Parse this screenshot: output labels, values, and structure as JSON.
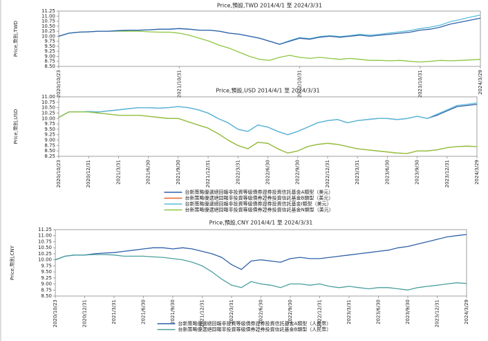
{
  "chart_data": [
    {
      "type": "line",
      "title": "Price,預設,TWD 2014/4/1 至 2024/3/31",
      "y_label": "Price,幣別,TWD",
      "categories": [
        "2020/10/23",
        null,
        null,
        null,
        null,
        null,
        null,
        null,
        null,
        null,
        null,
        null,
        "2021/10/31",
        null,
        null,
        null,
        null,
        null,
        null,
        null,
        null,
        null,
        null,
        null,
        "2022/10/31",
        null,
        null,
        null,
        null,
        null,
        null,
        null,
        null,
        null,
        null,
        null,
        "2023/10/31",
        null,
        null,
        null,
        null,
        null,
        "2024/3/29"
      ],
      "ylim": [
        8.5,
        11.25
      ],
      "yticks": [
        {
          "value": 8.5,
          "label": "8.50"
        },
        8.75,
        {
          "value": 9,
          "label": "9.00"
        },
        9.25,
        {
          "value": 9.5,
          "label": "9.50"
        },
        9.75,
        {
          "value": 10,
          "label": "10.00"
        },
        10.25,
        {
          "value": 10.5,
          "label": "10.50"
        },
        10.75,
        {
          "value": 11,
          "label": "11.00"
        },
        11.25
      ],
      "series": [
        {
          "color": "#8cc63f",
          "values": [
            10.0,
            10.15,
            10.2,
            10.22,
            10.25,
            10.25,
            10.25,
            10.25,
            10.25,
            10.22,
            10.2,
            10.2,
            10.15,
            10.05,
            9.9,
            9.75,
            9.55,
            9.4,
            9.2,
            9.0,
            8.85,
            8.8,
            8.95,
            9.05,
            8.95,
            8.9,
            8.95,
            8.9,
            8.85,
            8.9,
            8.85,
            8.8,
            8.8,
            8.78,
            8.8,
            8.75,
            8.72,
            8.75,
            8.8,
            8.78,
            8.8,
            8.82,
            8.85
          ]
        },
        {
          "color": "#5bbbd8",
          "values": [
            10.0,
            10.15,
            10.2,
            10.22,
            10.25,
            10.25,
            10.28,
            10.3,
            10.3,
            10.32,
            10.35,
            10.35,
            10.38,
            10.35,
            10.3,
            10.3,
            10.25,
            10.15,
            10.1,
            10.0,
            9.9,
            9.75,
            9.6,
            9.78,
            9.93,
            9.88,
            9.98,
            10.03,
            9.98,
            10.03,
            10.1,
            10.05,
            10.1,
            10.16,
            10.22,
            10.28,
            10.38,
            10.45,
            10.55,
            10.72,
            10.83,
            10.95,
            11.05
          ]
        },
        {
          "color": "#2e5fa8",
          "values": [
            10.0,
            10.15,
            10.2,
            10.22,
            10.25,
            10.25,
            10.28,
            10.3,
            10.3,
            10.32,
            10.35,
            10.35,
            10.38,
            10.35,
            10.3,
            10.3,
            10.25,
            10.15,
            10.1,
            10.0,
            9.9,
            9.75,
            9.6,
            9.75,
            9.9,
            9.85,
            9.95,
            10.0,
            9.95,
            10.0,
            10.05,
            10.0,
            10.05,
            10.1,
            10.15,
            10.2,
            10.3,
            10.35,
            10.45,
            10.6,
            10.7,
            10.8,
            10.9
          ]
        }
      ]
    },
    {
      "type": "line",
      "title": "Price,預設,USD 2014/4/1 至 2024/3/31",
      "y_label": "Price,幣別,USD",
      "categories": [
        "2020/10/23",
        null,
        null,
        "2020/12/31",
        null,
        null,
        "2021/3/31",
        null,
        null,
        "2021/6/30",
        null,
        null,
        "2021/9/30",
        null,
        null,
        "2021/12/31",
        null,
        null,
        "2022/3/31",
        null,
        null,
        "2022/6/30",
        null,
        null,
        "2022/9/30",
        null,
        null,
        "2022/12/31",
        null,
        null,
        "2023/3/31",
        null,
        null,
        "2023/6/30",
        null,
        null,
        "2023/9/30",
        null,
        null,
        "2023/12/31",
        null,
        null,
        "2024/3/29"
      ],
      "ylim": [
        8.25,
        11.0
      ],
      "yticks": [
        8.25,
        {
          "value": 8.5,
          "label": "8.50"
        },
        8.75,
        {
          "value": 9,
          "label": "9.00"
        },
        9.25,
        {
          "value": 9.5,
          "label": "9.50"
        },
        9.75,
        {
          "value": 10,
          "label": "10.00"
        },
        10.25,
        {
          "value": 10.5,
          "label": "10.50"
        },
        10.75,
        {
          "value": 11,
          "label": "11.00"
        }
      ],
      "legend": "bottom",
      "series": [
        {
          "name": "台新策略優選絕回報非投資等級債券證券投資信託基金A類型（美元）",
          "color": "#2e5fa8",
          "values": [
            10.05,
            10.3,
            10.3,
            10.32,
            10.3,
            10.35,
            10.4,
            10.45,
            10.5,
            10.5,
            10.48,
            10.5,
            10.55,
            10.5,
            10.4,
            10.25,
            10.0,
            9.8,
            9.5,
            9.4,
            9.7,
            9.6,
            9.4,
            9.25,
            9.4,
            9.6,
            9.8,
            9.9,
            9.95,
            9.8,
            9.9,
            9.95,
            10.0,
            10.0,
            9.95,
            10.0,
            10.1,
            10.0,
            10.15,
            10.35,
            10.55,
            10.6,
            10.65
          ]
        },
        {
          "name": "台新策略優選絕回報非投資等級債券證券投資信託基金B類型（美元）",
          "color": "#e2632a",
          "values": [
            10.05,
            10.3,
            10.3,
            10.3,
            10.25,
            10.2,
            10.15,
            10.15,
            10.15,
            10.1,
            10.05,
            10.0,
            10.0,
            9.85,
            9.7,
            9.55,
            9.3,
            9.0,
            8.75,
            8.6,
            8.9,
            8.85,
            8.6,
            8.4,
            8.5,
            8.7,
            8.8,
            8.85,
            8.8,
            8.7,
            8.6,
            8.55,
            8.5,
            8.45,
            8.4,
            8.38,
            8.5,
            8.5,
            8.55,
            8.65,
            8.7,
            8.72,
            8.7
          ]
        },
        {
          "name": "台新策略優選絕回報非投資等級債券證券投資信託基金I類型（美元）",
          "color": "#5bbbd8",
          "values": [
            10.05,
            10.3,
            10.3,
            10.32,
            10.3,
            10.35,
            10.4,
            10.45,
            10.5,
            10.5,
            10.48,
            10.5,
            10.55,
            10.5,
            10.4,
            10.25,
            10.0,
            9.8,
            9.5,
            9.4,
            9.7,
            9.6,
            9.4,
            9.25,
            9.4,
            9.6,
            9.8,
            9.9,
            9.95,
            9.8,
            9.9,
            9.95,
            10.0,
            10.0,
            9.95,
            10.0,
            10.1,
            10.0,
            10.2,
            10.4,
            10.6,
            10.65,
            10.72
          ]
        },
        {
          "name": "台新策略優選絕回報非投資等級債券證券投資信託基金N類型（美元）",
          "color": "#8cc63f",
          "values": [
            10.05,
            10.3,
            10.3,
            10.3,
            10.25,
            10.2,
            10.15,
            10.15,
            10.15,
            10.1,
            10.05,
            10.0,
            10.0,
            9.85,
            9.7,
            9.55,
            9.3,
            9.0,
            8.75,
            8.6,
            8.9,
            8.85,
            8.6,
            8.4,
            8.5,
            8.7,
            8.8,
            8.85,
            8.8,
            8.7,
            8.6,
            8.55,
            8.5,
            8.45,
            8.4,
            8.38,
            8.5,
            8.5,
            8.55,
            8.65,
            8.7,
            8.72,
            8.7
          ]
        }
      ]
    },
    {
      "type": "line",
      "title": "Price,預設,CNY 2014/4/1 至 2024/3/31",
      "y_label": "Price,幣別,CNY",
      "categories": [
        "2020/10/23",
        null,
        null,
        "2020/12/31",
        null,
        null,
        "2021/3/31",
        null,
        null,
        "2021/6/30",
        null,
        null,
        "2021/9/30",
        null,
        null,
        "2021/12/31",
        null,
        null,
        "2022/3/31",
        null,
        null,
        "2022/6/30",
        null,
        null,
        "2022/9/30",
        null,
        null,
        "2022/12/31",
        null,
        null,
        "2023/3/31",
        null,
        null,
        "2023/6/30",
        null,
        null,
        "2023/9/30",
        null,
        null,
        "2023/12/31",
        null,
        null,
        "2024/3/29"
      ],
      "ylim": [
        8.5,
        11.25
      ],
      "yticks": [
        {
          "value": 8.5,
          "label": "8.50"
        },
        8.75,
        {
          "value": 9,
          "label": "9.00"
        },
        9.25,
        {
          "value": 9.5,
          "label": "9.50"
        },
        9.75,
        {
          "value": 10,
          "label": "10.00"
        },
        10.25,
        {
          "value": 10.5,
          "label": "10.50"
        },
        10.75,
        {
          "value": 11,
          "label": "11.00"
        },
        11.25
      ],
      "legend": "bottom",
      "series": [
        {
          "name": "台新策略優選絕回報非投資等級債券證券投資信託基金A類型（人民幣）",
          "color": "#2e5fa8",
          "values": [
            10.0,
            10.15,
            10.2,
            10.2,
            10.25,
            10.28,
            10.3,
            10.35,
            10.4,
            10.45,
            10.5,
            10.5,
            10.45,
            10.5,
            10.45,
            10.35,
            10.25,
            10.1,
            9.8,
            9.6,
            9.95,
            10.0,
            9.95,
            9.9,
            10.05,
            10.1,
            10.05,
            10.05,
            10.1,
            10.15,
            10.2,
            10.25,
            10.3,
            10.35,
            10.4,
            10.5,
            10.55,
            10.65,
            10.75,
            10.85,
            10.95,
            11.0,
            11.05
          ]
        },
        {
          "name": "台新策略優選絕回報非投資等級債券證券投資信託基金B類型（人民幣）",
          "color": "#4a9e9e",
          "values": [
            10.0,
            10.15,
            10.2,
            10.2,
            10.22,
            10.22,
            10.2,
            10.15,
            10.15,
            10.15,
            10.12,
            10.1,
            10.05,
            10.0,
            9.9,
            9.75,
            9.5,
            9.2,
            8.95,
            8.85,
            9.1,
            9.0,
            8.95,
            8.85,
            9.0,
            9.0,
            8.95,
            9.0,
            8.9,
            8.85,
            8.9,
            8.85,
            8.8,
            8.85,
            8.85,
            8.8,
            8.75,
            8.85,
            8.9,
            8.95,
            9.0,
            9.05,
            9.02
          ]
        }
      ]
    }
  ]
}
